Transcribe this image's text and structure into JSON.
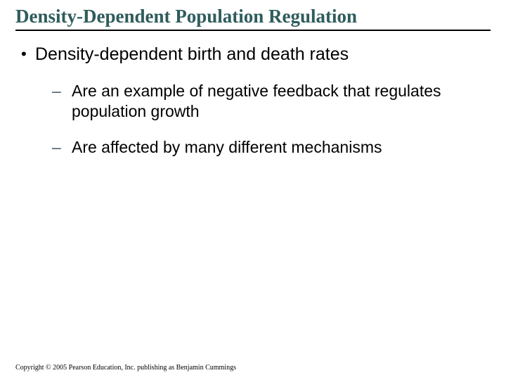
{
  "colors": {
    "title_color": "#2f5c5c",
    "rule_color": "#000000",
    "body_text_color": "#000000",
    "dash_color": "#4a5a6a",
    "background": "#ffffff"
  },
  "typography": {
    "title_font": "Times New Roman",
    "title_size_pt": 20,
    "title_weight": "bold",
    "body_font": "Arial",
    "lvl1_size_pt": 19,
    "lvl2_size_pt": 17,
    "copyright_font": "Times New Roman",
    "copyright_size_pt": 8
  },
  "slide": {
    "title": "Density-Dependent Population Regulation",
    "bullets": [
      {
        "level": 1,
        "marker": "•",
        "text": "Density-dependent birth and death rates"
      },
      {
        "level": 2,
        "marker": "–",
        "text": "Are an example of negative feedback that regulates population growth"
      },
      {
        "level": 2,
        "marker": "–",
        "text": "Are affected by many different mechanisms"
      }
    ],
    "copyright": "Copyright © 2005 Pearson Education, Inc. publishing as Benjamin Cummings"
  }
}
